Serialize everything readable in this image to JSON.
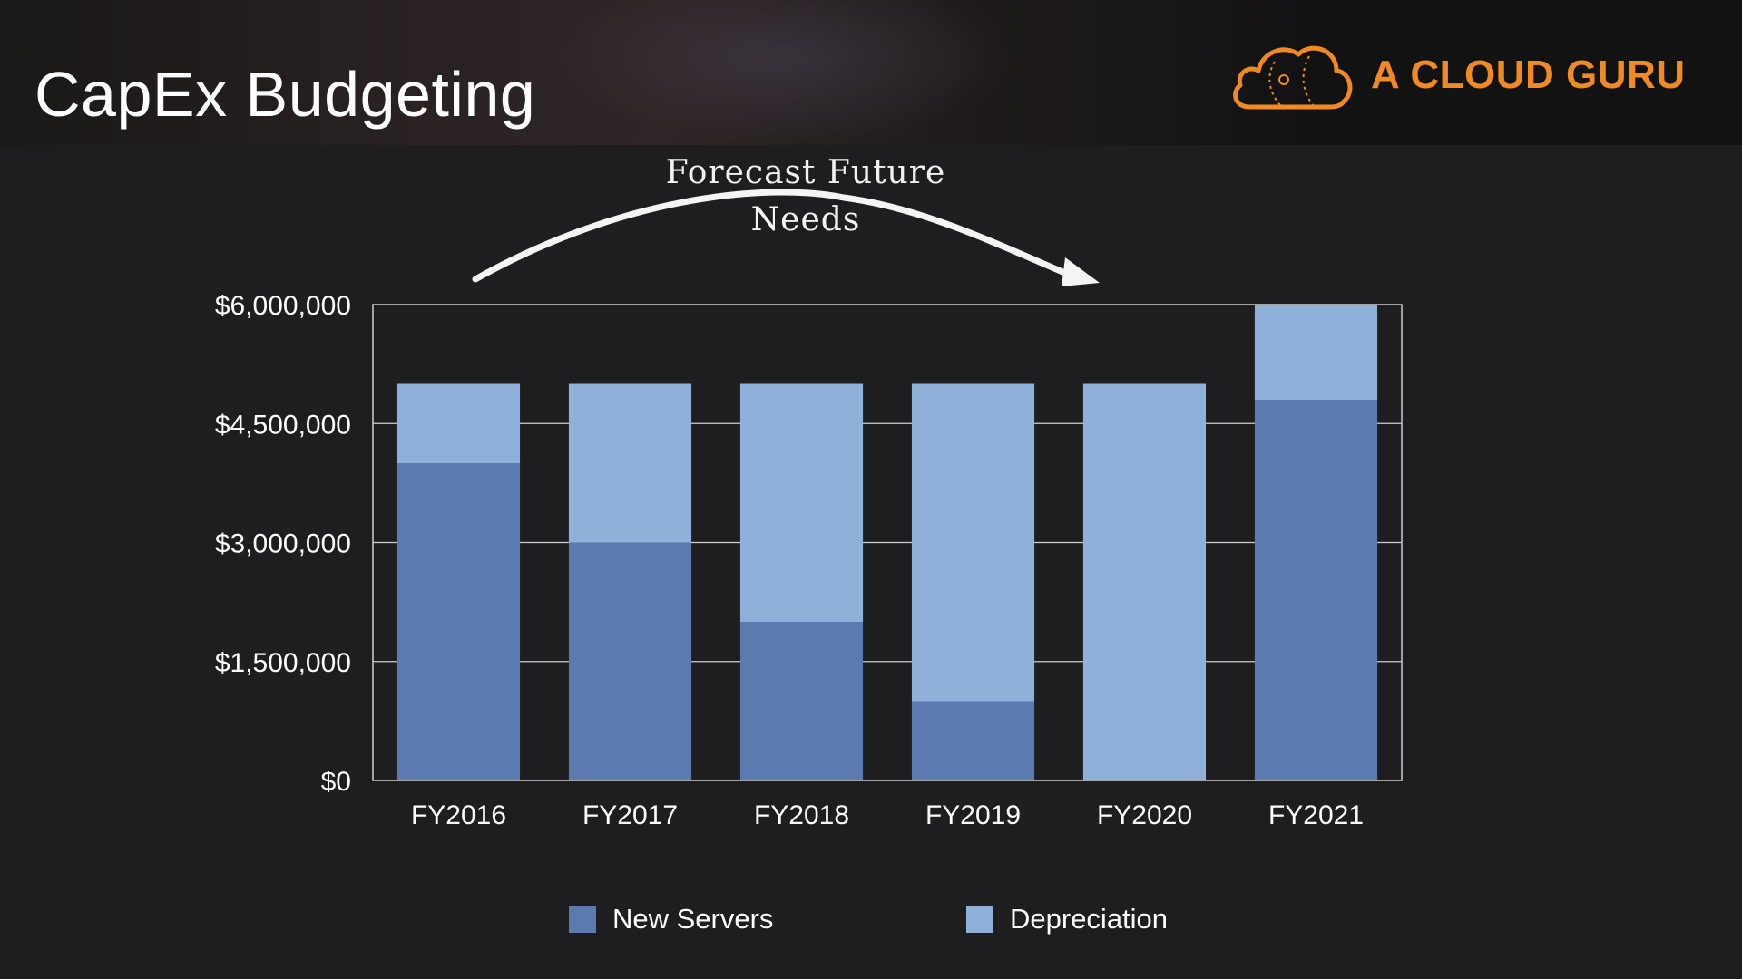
{
  "slide": {
    "title": "CapEx Budgeting",
    "brand": "A CLOUD GURU",
    "brand_color": "#f08a24",
    "logo_icon": "cloud-icon"
  },
  "annotation": {
    "line1": "Forecast Future",
    "line2": "Needs",
    "icon": "curved-arrow-icon"
  },
  "chart_data": {
    "type": "bar",
    "stacked": true,
    "categories": [
      "FY2016",
      "FY2017",
      "FY2018",
      "FY2019",
      "FY2020",
      "FY2021"
    ],
    "series": [
      {
        "name": "New Servers",
        "values": [
          4000000,
          3000000,
          2000000,
          1000000,
          0,
          4800000
        ],
        "color": "#5a7ab0"
      },
      {
        "name": "Depreciation",
        "values": [
          1000000,
          2000000,
          3000000,
          4000000,
          5000000,
          1200000
        ],
        "color": "#8fb0d8"
      }
    ],
    "yticks": [
      "$0",
      "$1,500,000",
      "$3,000,000",
      "$4,500,000",
      "$6,000,000"
    ],
    "ylim": [
      0,
      6000000
    ],
    "grid": true,
    "legend_position": "bottom"
  }
}
